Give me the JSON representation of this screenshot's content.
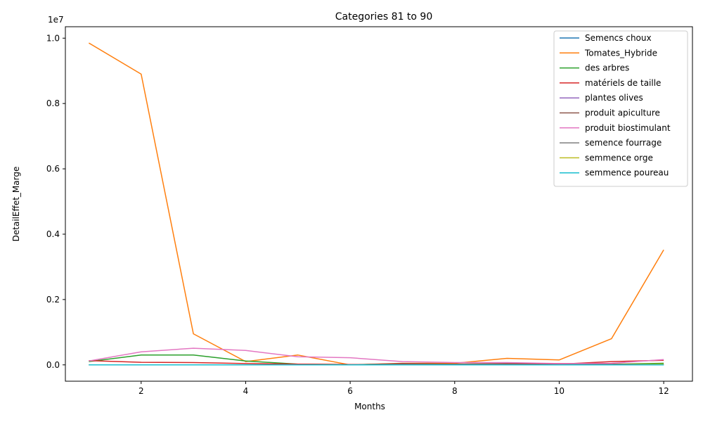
{
  "chart_data": {
    "type": "line",
    "title": "Categories 81 to 90",
    "xlabel": "Months",
    "ylabel": "DetailEffet_Marge",
    "y_multiplier_label": "1e7",
    "xlim": [
      0.55,
      12.55
    ],
    "ylim": [
      -0.5,
      10.35
    ],
    "x_ticks": [
      2,
      4,
      6,
      8,
      10,
      12
    ],
    "y_ticks": [
      0.0,
      0.2,
      0.4,
      0.6,
      0.8,
      1.0
    ],
    "y_tick_scale": 10,
    "legend_position": "top-right",
    "grid": false,
    "x": [
      1,
      2,
      3,
      4,
      5,
      6,
      7,
      8,
      9,
      10,
      11,
      12
    ],
    "series": [
      {
        "name": "Semencs choux",
        "color": "#1f77b4",
        "values": [
          0.0,
          0.0,
          0.0,
          0.0,
          0.0,
          0.0,
          0.0,
          0.0,
          0.0,
          0.0,
          0.0,
          0.0
        ]
      },
      {
        "name": "Tomates_Hybride",
        "color": "#ff7f0e",
        "values": [
          9.85,
          8.9,
          0.95,
          0.1,
          0.3,
          0.0,
          0.05,
          0.05,
          0.2,
          0.15,
          0.8,
          3.52
        ]
      },
      {
        "name": "des arbres",
        "color": "#2ca02c",
        "values": [
          0.1,
          0.3,
          0.3,
          0.12,
          0.02,
          0.01,
          0.02,
          0.02,
          0.03,
          0.02,
          0.02,
          0.05
        ]
      },
      {
        "name": "matériels de taille",
        "color": "#d62728",
        "values": [
          0.13,
          0.08,
          0.07,
          0.04,
          0.02,
          0.01,
          0.01,
          0.01,
          0.02,
          0.02,
          0.1,
          0.14
        ]
      },
      {
        "name": "plantes olives",
        "color": "#9467bd",
        "values": [
          0.0,
          0.0,
          0.0,
          0.0,
          0.0,
          0.0,
          0.0,
          0.0,
          0.0,
          0.0,
          0.0,
          0.0
        ]
      },
      {
        "name": "produit apiculture",
        "color": "#8c564b",
        "values": [
          0.0,
          0.0,
          0.0,
          0.0,
          0.0,
          0.0,
          0.04,
          0.02,
          0.04,
          0.04,
          0.02,
          0.01
        ]
      },
      {
        "name": "produit biostimulant",
        "color": "#e377c2",
        "values": [
          0.12,
          0.4,
          0.51,
          0.44,
          0.25,
          0.22,
          0.1,
          0.07,
          0.07,
          0.04,
          0.05,
          0.16
        ]
      },
      {
        "name": "semence fourrage",
        "color": "#7f7f7f",
        "values": [
          0.0,
          0.0,
          0.0,
          0.0,
          0.0,
          0.0,
          0.0,
          0.0,
          0.0,
          0.0,
          0.0,
          0.0
        ]
      },
      {
        "name": "semmence orge",
        "color": "#bcbd22",
        "values": [
          0.0,
          0.0,
          0.0,
          0.0,
          0.0,
          0.0,
          0.0,
          0.0,
          0.0,
          0.0,
          0.0,
          0.02
        ]
      },
      {
        "name": "semmence poureau",
        "color": "#17becf",
        "values": [
          0.0,
          0.0,
          0.0,
          0.0,
          0.0,
          0.0,
          0.0,
          0.0,
          0.0,
          0.0,
          0.0,
          0.0
        ]
      }
    ]
  }
}
